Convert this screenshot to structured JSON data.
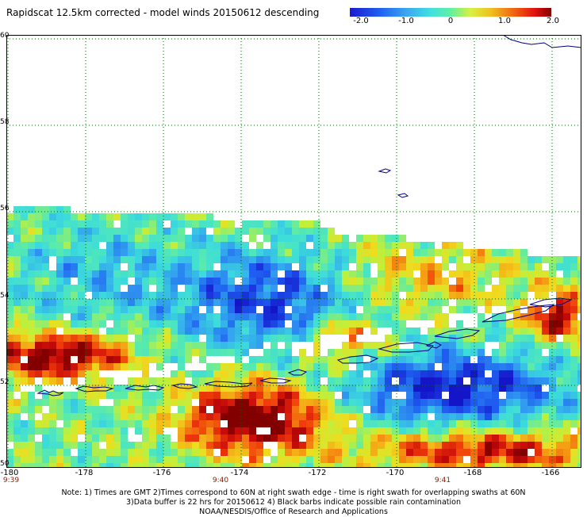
{
  "title": "Rapidscat 12.5km corrected - model winds 20150612 descending",
  "colorbar": {
    "labels": [
      "-2.0",
      "-1.0",
      "0",
      "1.0",
      "2.0"
    ],
    "values": [
      -2.0,
      -1.0,
      0,
      1.0,
      2.0
    ]
  },
  "axes": {
    "lat_labels": [
      "60",
      "58",
      "56",
      "54",
      "52",
      "50"
    ],
    "lon_labels": [
      "-180",
      "-178",
      "-176",
      "-174",
      "-172",
      "-170",
      "-168",
      "-166"
    ],
    "lat_range": [
      50,
      60
    ],
    "lon_range": [
      -180,
      -165.2
    ]
  },
  "times": [
    {
      "label": "9:39",
      "lon": -180
    },
    {
      "label": "9:40",
      "lon": -174.1
    },
    {
      "label": "9:41",
      "lon": -168.2
    }
  ],
  "notes": {
    "line1": "Note: 1) Times are GMT 2)Times correspond to 60N at right swath edge - time is right swath for overlapping swaths at 60N",
    "line2": "3)Data buffer is 22 hrs for 20150612 4) Black barbs indicate possible rain contamination",
    "line3": "NOAA/NESDIS/Office of Research and Applications"
  },
  "colors": {
    "coastline": "#000080",
    "grid": "#006400"
  }
}
